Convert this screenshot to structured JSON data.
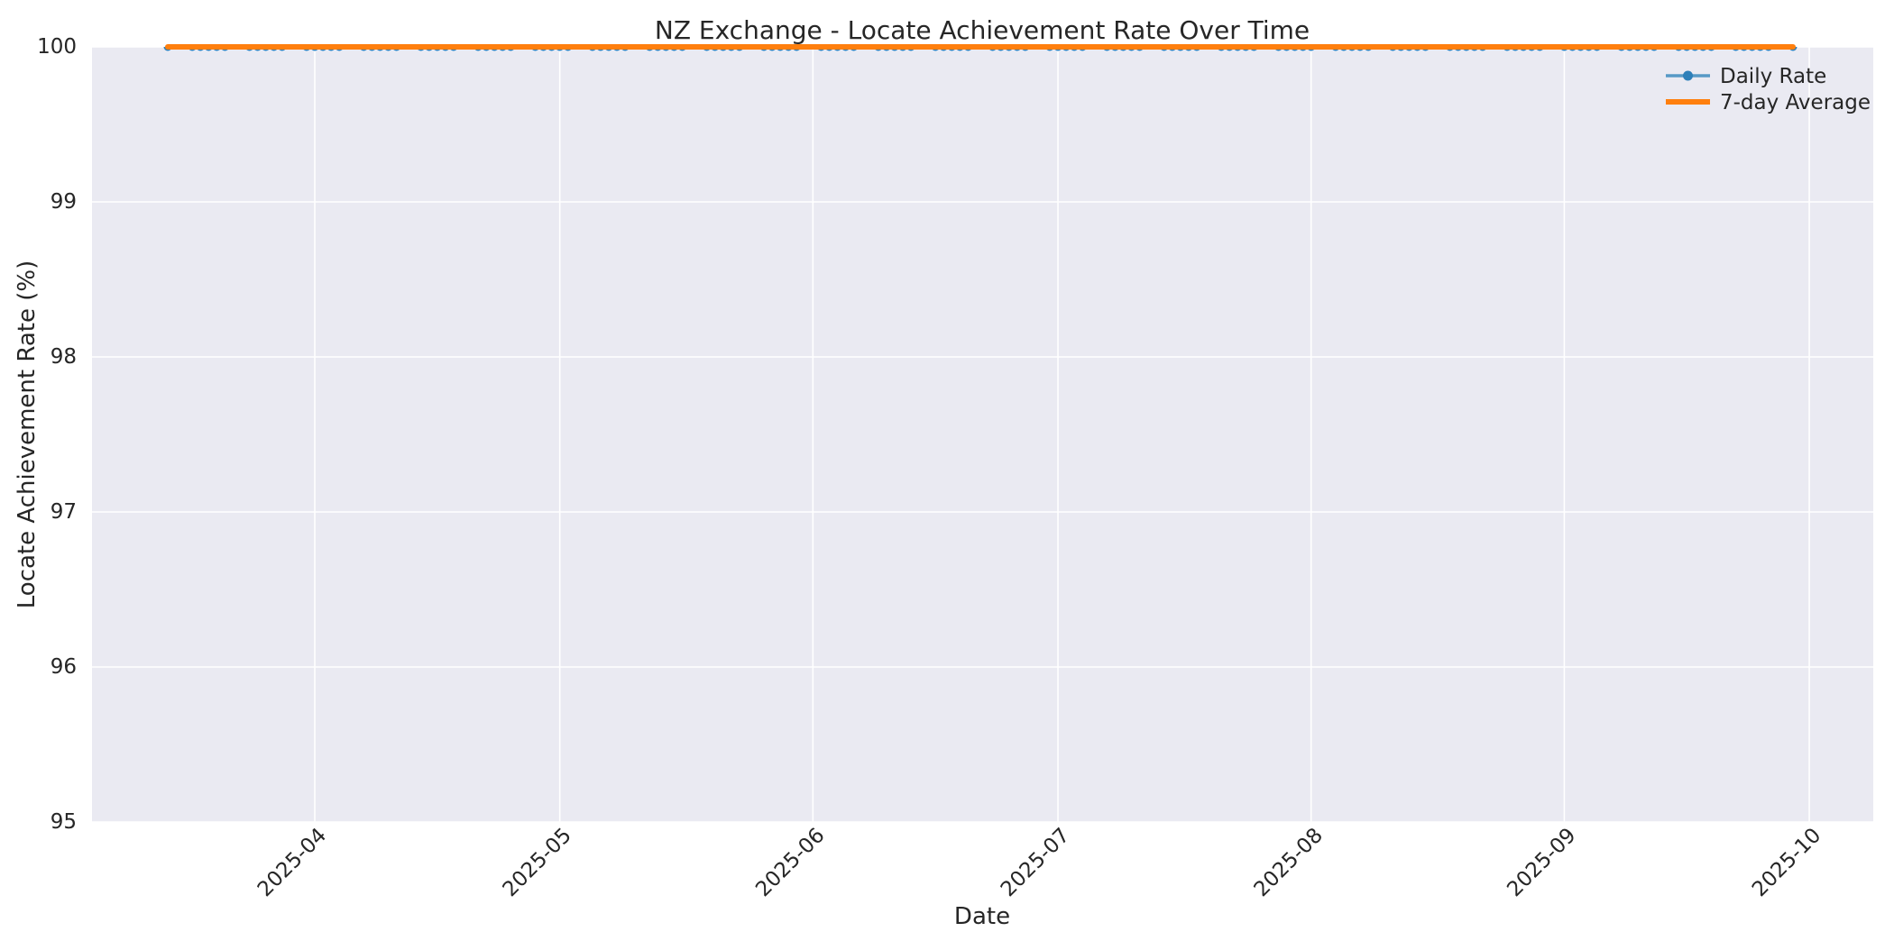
{
  "chart_data": {
    "type": "line",
    "title": "NZ Exchange - Locate Achievement Rate Over Time",
    "xlabel": "Date",
    "ylabel": "Locate Achievement Rate (%)",
    "ylim": [
      95,
      100
    ],
    "yticks": [
      95,
      96,
      97,
      98,
      99,
      100
    ],
    "xtick_labels": [
      "2025-04",
      "2025-05",
      "2025-06",
      "2025-07",
      "2025-08",
      "2025-09",
      "2025-10"
    ],
    "grid": true,
    "legend_position": "upper right",
    "plot_background": "#eaeaf2",
    "gridline_color": "#ffffff",
    "text_color": "#262626",
    "x": [
      "2025-03-14",
      "2025-03-17",
      "2025-03-18",
      "2025-03-19",
      "2025-03-20",
      "2025-03-21",
      "2025-03-24",
      "2025-03-25",
      "2025-03-26",
      "2025-03-27",
      "2025-03-28",
      "2025-03-31",
      "2025-04-01",
      "2025-04-02",
      "2025-04-03",
      "2025-04-04",
      "2025-04-07",
      "2025-04-08",
      "2025-04-09",
      "2025-04-10",
      "2025-04-11",
      "2025-04-14",
      "2025-04-15",
      "2025-04-16",
      "2025-04-17",
      "2025-04-18",
      "2025-04-21",
      "2025-04-22",
      "2025-04-23",
      "2025-04-24",
      "2025-04-25",
      "2025-04-28",
      "2025-04-29",
      "2025-04-30",
      "2025-05-01",
      "2025-05-02",
      "2025-05-05",
      "2025-05-06",
      "2025-05-07",
      "2025-05-08",
      "2025-05-09",
      "2025-05-12",
      "2025-05-13",
      "2025-05-14",
      "2025-05-15",
      "2025-05-16",
      "2025-05-19",
      "2025-05-20",
      "2025-05-21",
      "2025-05-22",
      "2025-05-23",
      "2025-05-26",
      "2025-05-27",
      "2025-05-28",
      "2025-05-29",
      "2025-05-30",
      "2025-06-02",
      "2025-06-03",
      "2025-06-04",
      "2025-06-05",
      "2025-06-06",
      "2025-06-09",
      "2025-06-10",
      "2025-06-11",
      "2025-06-12",
      "2025-06-13",
      "2025-06-16",
      "2025-06-17",
      "2025-06-18",
      "2025-06-19",
      "2025-06-20",
      "2025-06-23",
      "2025-06-24",
      "2025-06-25",
      "2025-06-26",
      "2025-06-27",
      "2025-06-30",
      "2025-07-01",
      "2025-07-02",
      "2025-07-03",
      "2025-07-04",
      "2025-07-07",
      "2025-07-08",
      "2025-07-09",
      "2025-07-10",
      "2025-07-11",
      "2025-07-14",
      "2025-07-15",
      "2025-07-16",
      "2025-07-17",
      "2025-07-18",
      "2025-07-21",
      "2025-07-22",
      "2025-07-23",
      "2025-07-24",
      "2025-07-25",
      "2025-07-28",
      "2025-07-29",
      "2025-07-30",
      "2025-07-31",
      "2025-08-01",
      "2025-08-04",
      "2025-08-05",
      "2025-08-06",
      "2025-08-07",
      "2025-08-08",
      "2025-08-11",
      "2025-08-12",
      "2025-08-13",
      "2025-08-14",
      "2025-08-15",
      "2025-08-18",
      "2025-08-19",
      "2025-08-20",
      "2025-08-21",
      "2025-08-22",
      "2025-08-25",
      "2025-08-26",
      "2025-08-27",
      "2025-08-28",
      "2025-08-29",
      "2025-09-01",
      "2025-09-02",
      "2025-09-03",
      "2025-09-04",
      "2025-09-05",
      "2025-09-08",
      "2025-09-09",
      "2025-09-10",
      "2025-09-11",
      "2025-09-12",
      "2025-09-15",
      "2025-09-16",
      "2025-09-17",
      "2025-09-18",
      "2025-09-19",
      "2025-09-22",
      "2025-09-23",
      "2025-09-24",
      "2025-09-25",
      "2025-09-26",
      "2025-09-29"
    ],
    "series": [
      {
        "name": "Daily Rate",
        "color": "#5799c6",
        "marker": "circle",
        "marker_color": "#2d7fb9",
        "values": [
          100,
          100,
          100,
          100,
          100,
          100,
          100,
          100,
          100,
          100,
          100,
          100,
          100,
          100,
          100,
          100,
          100,
          100,
          100,
          100,
          100,
          100,
          100,
          100,
          100,
          100,
          100,
          100,
          100,
          100,
          100,
          100,
          100,
          100,
          100,
          100,
          100,
          100,
          100,
          100,
          100,
          100,
          100,
          100,
          100,
          100,
          100,
          100,
          100,
          100,
          100,
          100,
          100,
          100,
          100,
          100,
          100,
          100,
          100,
          100,
          100,
          100,
          100,
          100,
          100,
          100,
          100,
          100,
          100,
          100,
          100,
          100,
          100,
          100,
          100,
          100,
          100,
          100,
          100,
          100,
          100,
          100,
          100,
          100,
          100,
          100,
          100,
          100,
          100,
          100,
          100,
          100,
          100,
          100,
          100,
          100,
          100,
          100,
          100,
          100,
          100,
          100,
          100,
          100,
          100,
          100,
          100,
          100,
          100,
          100,
          100,
          100,
          100,
          100,
          100,
          100,
          100,
          100,
          100,
          100,
          100,
          100,
          100,
          100,
          100,
          100,
          100,
          100,
          100,
          100,
          100,
          100,
          100,
          100,
          100,
          100,
          100,
          100,
          100,
          100,
          100,
          100
        ]
      },
      {
        "name": "7-day Average",
        "color": "#ff7f0e",
        "marker": null,
        "marker_color": null,
        "values": [
          100,
          100,
          100,
          100,
          100,
          100,
          100,
          100,
          100,
          100,
          100,
          100,
          100,
          100,
          100,
          100,
          100,
          100,
          100,
          100,
          100,
          100,
          100,
          100,
          100,
          100,
          100,
          100,
          100,
          100,
          100,
          100,
          100,
          100,
          100,
          100,
          100,
          100,
          100,
          100,
          100,
          100,
          100,
          100,
          100,
          100,
          100,
          100,
          100,
          100,
          100,
          100,
          100,
          100,
          100,
          100,
          100,
          100,
          100,
          100,
          100,
          100,
          100,
          100,
          100,
          100,
          100,
          100,
          100,
          100,
          100,
          100,
          100,
          100,
          100,
          100,
          100,
          100,
          100,
          100,
          100,
          100,
          100,
          100,
          100,
          100,
          100,
          100,
          100,
          100,
          100,
          100,
          100,
          100,
          100,
          100,
          100,
          100,
          100,
          100,
          100,
          100,
          100,
          100,
          100,
          100,
          100,
          100,
          100,
          100,
          100,
          100,
          100,
          100,
          100,
          100,
          100,
          100,
          100,
          100,
          100,
          100,
          100,
          100,
          100,
          100,
          100,
          100,
          100,
          100,
          100,
          100,
          100,
          100,
          100,
          100,
          100,
          100,
          100,
          100,
          100,
          100
        ]
      }
    ]
  }
}
